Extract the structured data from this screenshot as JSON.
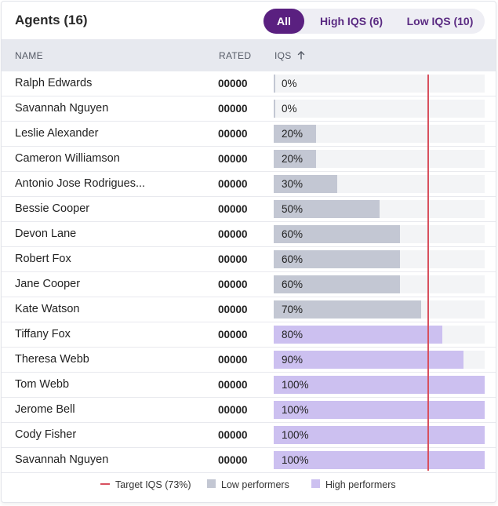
{
  "header": {
    "title": "Agents (16)",
    "filters": [
      {
        "label": "All",
        "active": true
      },
      {
        "label": "High IQS (6)",
        "active": false
      },
      {
        "label": "Low IQS (10)",
        "active": false
      }
    ]
  },
  "columns": {
    "name": "NAME",
    "rated": "RATED",
    "iqs": "IQS",
    "iqs_sort_icon": "arrow-up-icon"
  },
  "rows": [
    {
      "name": "Ralph Edwards",
      "rated": "00000",
      "iqs": 0,
      "iqs_label": "0%",
      "group": "low"
    },
    {
      "name": "Savannah Nguyen",
      "rated": "00000",
      "iqs": 0,
      "iqs_label": "0%",
      "group": "low"
    },
    {
      "name": "Leslie Alexander",
      "rated": "00000",
      "iqs": 20,
      "iqs_label": "20%",
      "group": "low"
    },
    {
      "name": "Cameron Williamson",
      "rated": "00000",
      "iqs": 20,
      "iqs_label": "20%",
      "group": "low"
    },
    {
      "name": "Antonio Jose Rodrigues...",
      "rated": "00000",
      "iqs": 30,
      "iqs_label": "30%",
      "group": "low"
    },
    {
      "name": "Bessie Cooper",
      "rated": "00000",
      "iqs": 50,
      "iqs_label": "50%",
      "group": "low"
    },
    {
      "name": "Devon Lane",
      "rated": "00000",
      "iqs": 60,
      "iqs_label": "60%",
      "group": "low"
    },
    {
      "name": "Robert Fox",
      "rated": "00000",
      "iqs": 60,
      "iqs_label": "60%",
      "group": "low"
    },
    {
      "name": "Jane Cooper",
      "rated": "00000",
      "iqs": 60,
      "iqs_label": "60%",
      "group": "low"
    },
    {
      "name": "Kate Watson",
      "rated": "00000",
      "iqs": 70,
      "iqs_label": "70%",
      "group": "low"
    },
    {
      "name": "Tiffany Fox",
      "rated": "00000",
      "iqs": 80,
      "iqs_label": "80%",
      "group": "high"
    },
    {
      "name": "Theresa Webb",
      "rated": "00000",
      "iqs": 90,
      "iqs_label": "90%",
      "group": "high"
    },
    {
      "name": "Tom Webb",
      "rated": "00000",
      "iqs": 100,
      "iqs_label": "100%",
      "group": "high"
    },
    {
      "name": "Jerome Bell",
      "rated": "00000",
      "iqs": 100,
      "iqs_label": "100%",
      "group": "high"
    },
    {
      "name": "Cody Fisher",
      "rated": "00000",
      "iqs": 100,
      "iqs_label": "100%",
      "group": "high"
    },
    {
      "name": "Savannah Nguyen",
      "rated": "00000",
      "iqs": 100,
      "iqs_label": "100%",
      "group": "high"
    }
  ],
  "target_iqs": 73,
  "legend": {
    "target": "Target IQS (73%)",
    "low": "Low performers",
    "high": "High performers"
  },
  "colors": {
    "accent": "#5a2080",
    "target_line": "#d8505e",
    "low_bar": "#c3c7d3",
    "high_bar": "#ccc0f0"
  }
}
